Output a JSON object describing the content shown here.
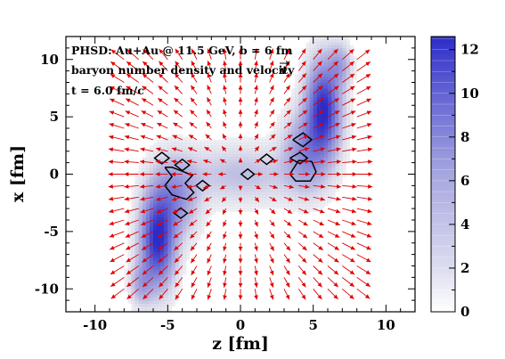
{
  "chart_data": {
    "type": "heatmap",
    "annotations": {
      "line1": "PHSD:  Au+Au @ 11.5 GeV,  b = 6 fm",
      "line2": "baryon number density and velocity",
      "line3": "t = 6.0 fm/c"
    },
    "xlabel": "z  [fm]",
    "ylabel": "x  [fm]",
    "xlim": [
      -12,
      12
    ],
    "ylim": [
      -12,
      12
    ],
    "x_ticks": [
      -10,
      -5,
      0,
      5,
      10
    ],
    "y_ticks": [
      -10,
      -5,
      0,
      5,
      10
    ],
    "colorbar": {
      "range": [
        0,
        12.6
      ],
      "ticks": [
        0,
        2,
        4,
        6,
        8,
        10,
        12
      ],
      "color_low": "#ffffff",
      "color_high": "#2c2cc8"
    },
    "density_blobs": [
      {
        "z": 5.7,
        "x": 5.7,
        "sz": 0.75,
        "sx": 2.6,
        "peak": 12.5
      },
      {
        "z": -5.7,
        "x": -5.7,
        "sz": 0.75,
        "sx": 2.6,
        "peak": 12.5
      },
      {
        "z": 4.5,
        "x": 2.0,
        "sz": 1.0,
        "sx": 2.2,
        "peak": 5.5
      },
      {
        "z": -4.5,
        "x": -2.0,
        "sz": 1.0,
        "sx": 2.2,
        "peak": 5.5
      },
      {
        "z": 0.0,
        "x": 0.0,
        "sz": 2.8,
        "sx": 1.6,
        "peak": 2.5
      },
      {
        "z": 6.8,
        "x": 9.5,
        "sz": 0.5,
        "sx": 1.2,
        "peak": 4.0
      },
      {
        "z": -6.8,
        "x": -9.5,
        "sz": 0.5,
        "sx": 1.2,
        "peak": 4.0
      }
    ],
    "contour_diamonds": [
      {
        "z": -5.4,
        "x": 1.4,
        "r": 0.5
      },
      {
        "z": -4.0,
        "x": 0.8,
        "r": 0.5
      },
      {
        "z": -2.6,
        "x": -1.0,
        "r": 0.45
      },
      {
        "z": -4.1,
        "x": -3.4,
        "r": 0.45
      },
      {
        "z": 0.5,
        "x": 0.0,
        "r": 0.45
      },
      {
        "z": 1.8,
        "x": 1.3,
        "r": 0.45
      }
    ],
    "contour_paths": [
      [
        [
          -5.2,
          0.6
        ],
        [
          -4.7,
          -0.2
        ],
        [
          -5.2,
          -1.0
        ],
        [
          -4.7,
          -1.8
        ],
        [
          -3.7,
          -2.2
        ],
        [
          -3.2,
          -1.6
        ],
        [
          -3.8,
          -0.8
        ],
        [
          -3.3,
          -0.1
        ],
        [
          -4.1,
          0.3
        ],
        [
          -4.7,
          0.6
        ],
        [
          -5.2,
          0.6
        ]
      ],
      [
        [
          3.4,
          0.0
        ],
        [
          4.0,
          1.2
        ],
        [
          4.9,
          1.1
        ],
        [
          5.2,
          0.2
        ],
        [
          4.8,
          -0.6
        ],
        [
          3.8,
          -0.6
        ],
        [
          3.4,
          0.0
        ]
      ],
      [
        [
          3.6,
          3.0
        ],
        [
          4.3,
          3.6
        ],
        [
          4.9,
          3.0
        ],
        [
          4.3,
          2.4
        ],
        [
          3.6,
          3.0
        ]
      ],
      [
        [
          3.4,
          1.4
        ],
        [
          4.1,
          1.9
        ],
        [
          4.6,
          1.4
        ],
        [
          4.1,
          0.9
        ],
        [
          3.4,
          1.4
        ]
      ]
    ],
    "velocity_field": {
      "grid_z": [
        -8,
        -7,
        -6,
        -5,
        -4,
        -3,
        -2,
        -1,
        0,
        1,
        2,
        3,
        4,
        5,
        6,
        7,
        8
      ],
      "grid_x": [
        -10,
        -9,
        -8,
        -7,
        -6,
        -5,
        -4,
        -3,
        -2,
        -1,
        0,
        1,
        2,
        3,
        4,
        5,
        6,
        7,
        8,
        9,
        10
      ],
      "arrow_color": "#e00000"
    }
  }
}
